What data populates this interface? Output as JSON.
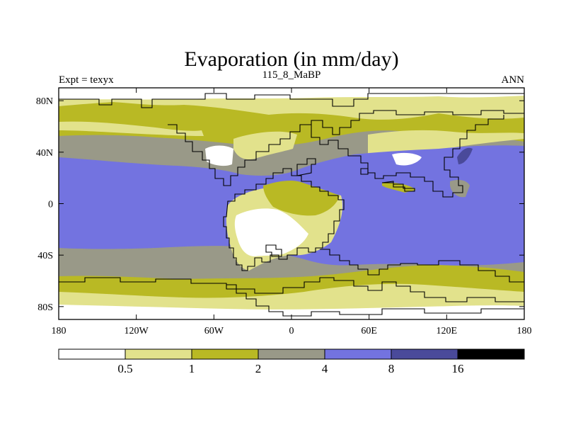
{
  "map": {
    "title": "Evaporation (in mm/day)",
    "subtitle_left": "Expt = texyx",
    "subtitle_center": "115_8_MaBP",
    "subtitle_right": "ANN",
    "projection": "cylindrical equidistant",
    "lon_range": [
      -180,
      180
    ],
    "lat_range": [
      -90,
      90
    ],
    "x_ticks": [
      {
        "value": -180,
        "label": "180"
      },
      {
        "value": -120,
        "label": "120W"
      },
      {
        "value": -60,
        "label": "60W"
      },
      {
        "value": 0,
        "label": "0"
      },
      {
        "value": 60,
        "label": "60E"
      },
      {
        "value": 120,
        "label": "120E"
      },
      {
        "value": 180,
        "label": "180"
      }
    ],
    "y_ticks": [
      {
        "value": 80,
        "label": "80N"
      },
      {
        "value": 40,
        "label": "40N"
      },
      {
        "value": 0,
        "label": "0"
      },
      {
        "value": -40,
        "label": "40S"
      },
      {
        "value": -80,
        "label": "80S"
      }
    ]
  },
  "colorbar": {
    "levels": [
      "0.5",
      "1",
      "2",
      "4",
      "8",
      "16"
    ],
    "colors": [
      "#ffffff",
      "#e2e28c",
      "#b9b924",
      "#999988",
      "#7373e0",
      "#4a4a9a",
      "#000000"
    ]
  }
}
